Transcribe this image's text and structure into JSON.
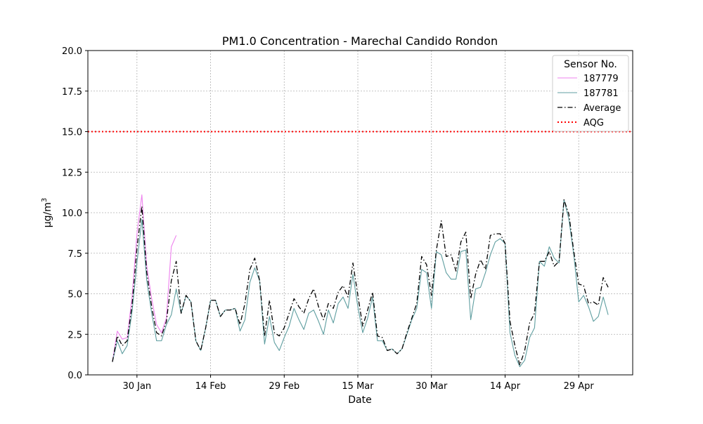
{
  "chart_data": {
    "type": "line",
    "title": "PM1.0 Concentration - Marechal Candido Rondon",
    "xlabel": "Date",
    "ylabel": "μg/m",
    "ylabel_sup": "3",
    "ylim": [
      0,
      20
    ],
    "yticks": [
      "0.0",
      "2.5",
      "5.0",
      "7.5",
      "10.0",
      "12.5",
      "15.0",
      "17.5",
      "20.0"
    ],
    "x_start": "2024-01-25",
    "x_end": "2024-05-06",
    "xlim": [
      "2024-01-20",
      "2024-05-10"
    ],
    "xticks": [
      {
        "date": "2024-01-30",
        "label": "30 Jan"
      },
      {
        "date": "2024-02-14",
        "label": "14 Feb"
      },
      {
        "date": "2024-02-29",
        "label": "29 Feb"
      },
      {
        "date": "2024-03-15",
        "label": "15 Mar"
      },
      {
        "date": "2024-03-30",
        "label": "30 Mar"
      },
      {
        "date": "2024-04-14",
        "label": "14 Apr"
      },
      {
        "date": "2024-04-29",
        "label": "29 Apr"
      }
    ],
    "grid": true,
    "legend": {
      "title": "Sensor No.",
      "position": "top-right"
    },
    "aqg": {
      "name": "AQG",
      "value": 15.0,
      "color": "#ff0000"
    },
    "series": [
      {
        "name": "187779",
        "color": "#ee82ee",
        "style": "solid",
        "values": [
          0.8,
          2.7,
          2.2,
          2.3,
          4.8,
          8.7,
          11.1,
          6.7,
          4.7,
          3.1,
          2.6,
          3.5,
          7.9,
          8.6,
          null,
          null,
          null,
          null,
          null,
          null,
          null,
          null,
          null,
          null,
          null,
          null,
          null,
          null,
          null,
          null,
          null,
          null,
          null,
          null,
          null,
          null,
          null,
          null,
          null,
          null,
          null,
          null,
          null,
          null,
          null,
          null,
          null,
          null,
          null,
          null,
          null,
          null,
          null,
          null,
          null,
          null,
          null,
          null,
          null,
          null,
          null,
          null,
          null,
          null,
          null,
          null,
          null,
          null,
          null,
          null,
          null,
          null,
          null,
          null,
          null,
          null,
          null,
          null,
          null,
          null,
          null,
          null,
          null,
          null,
          null,
          null,
          null,
          null,
          null,
          null,
          null,
          null,
          null,
          null,
          null,
          null,
          null,
          null,
          null,
          null,
          null,
          null
        ]
      },
      {
        "name": "187781",
        "color": "#5f9ea0",
        "style": "solid",
        "values": [
          0.8,
          2.1,
          1.3,
          1.8,
          3.9,
          6.9,
          9.6,
          5.8,
          3.8,
          2.1,
          2.1,
          3.1,
          3.7,
          5.3,
          3.8,
          4.9,
          4.5,
          2.1,
          1.5,
          2.9,
          4.6,
          4.6,
          3.6,
          4.0,
          4.0,
          4.1,
          2.7,
          3.4,
          5.7,
          6.6,
          5.8,
          1.9,
          3.6,
          2.0,
          1.5,
          2.3,
          3.0,
          4.1,
          3.4,
          2.8,
          3.8,
          4.0,
          3.3,
          2.5,
          4.0,
          3.2,
          4.4,
          4.8,
          4.1,
          6.2,
          4.2,
          2.6,
          3.5,
          4.8,
          2.1,
          2.1,
          1.5,
          1.6,
          1.3,
          1.6,
          2.5,
          3.4,
          4.1,
          6.5,
          6.3,
          4.1,
          7.6,
          7.4,
          6.3,
          5.9,
          5.9,
          7.6,
          7.7,
          3.4,
          5.3,
          5.4,
          6.3,
          7.4,
          8.2,
          8.4,
          8.1,
          2.6,
          1.2,
          0.5,
          0.9,
          2.3,
          2.9,
          7.0,
          6.7,
          7.9,
          7.2,
          6.9,
          10.8,
          9.6,
          7.4,
          4.5,
          4.9,
          4.2,
          3.3,
          3.6,
          4.8,
          3.7
        ]
      },
      {
        "name": "Average",
        "color": "#000000",
        "style": "dashdot",
        "values": [
          0.8,
          2.4,
          1.8,
          2.1,
          4.3,
          7.8,
          10.4,
          6.3,
          4.2,
          2.6,
          2.4,
          3.3,
          5.8,
          7.0,
          3.8,
          4.9,
          4.5,
          2.1,
          1.5,
          2.9,
          4.6,
          4.6,
          3.6,
          4.0,
          4.0,
          4.1,
          3.1,
          4.4,
          6.5,
          7.2,
          5.8,
          2.4,
          4.6,
          2.6,
          2.4,
          2.9,
          3.8,
          4.7,
          4.2,
          3.8,
          4.7,
          5.3,
          4.2,
          3.4,
          4.4,
          4.1,
          5.1,
          5.5,
          4.8,
          6.9,
          4.9,
          3.0,
          4.0,
          5.1,
          2.4,
          2.3,
          1.5,
          1.6,
          1.3,
          1.6,
          2.6,
          3.5,
          4.4,
          7.3,
          6.8,
          4.9,
          7.7,
          9.5,
          7.3,
          7.4,
          6.4,
          8.2,
          8.8,
          4.7,
          6.2,
          7.1,
          6.5,
          8.6,
          8.7,
          8.7,
          8.1,
          3.3,
          1.8,
          0.6,
          1.5,
          3.2,
          3.8,
          7.0,
          7.0,
          7.6,
          6.7,
          7.0,
          10.8,
          9.9,
          7.6,
          5.6,
          5.5,
          4.4,
          4.5,
          4.3,
          6.0,
          5.4
        ]
      }
    ]
  }
}
